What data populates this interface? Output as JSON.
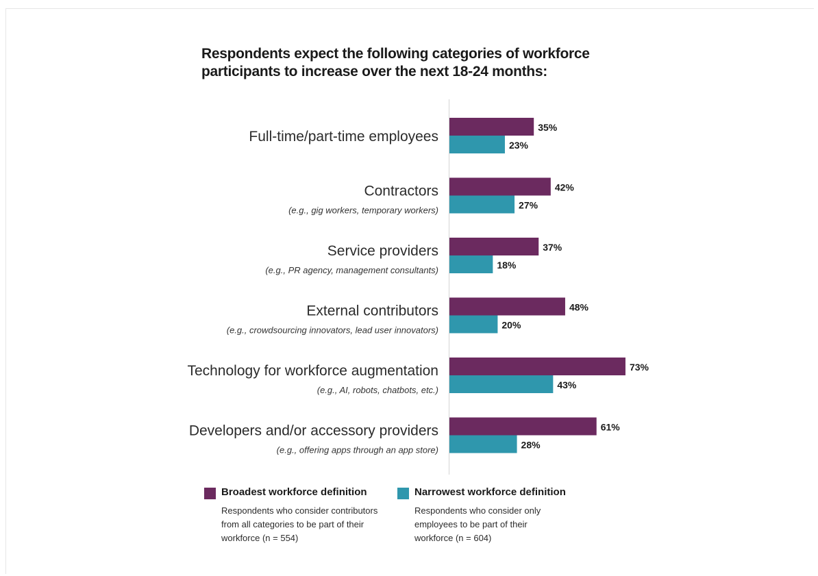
{
  "title_lines": [
    "Respondents expect the following categories of workforce",
    "participants to increase over the next 18-24 months:"
  ],
  "chart_data": {
    "type": "bar",
    "orientation": "horizontal",
    "categories": [
      {
        "label": "Full-time/part-time employees",
        "note": ""
      },
      {
        "label": "Contractors",
        "note": "(e.g., gig workers, temporary workers)"
      },
      {
        "label": "Service providers",
        "note": "(e.g., PR agency, management consultants)"
      },
      {
        "label": "External contributors",
        "note": "(e.g., crowdsourcing innovators, lead user innovators)"
      },
      {
        "label": "Technology for workforce augmentation",
        "note": "(e.g., AI, robots, chatbots, etc.)"
      },
      {
        "label": "Developers and/or accessory providers",
        "note": "(e.g., offering apps through an app store)"
      }
    ],
    "series": [
      {
        "name": "Broadest workforce definition",
        "color": "#6b2a5f",
        "values": [
          35,
          42,
          37,
          48,
          73,
          61
        ],
        "labels": [
          "35%",
          "42%",
          "37%",
          "48%",
          "73%",
          "61%"
        ]
      },
      {
        "name": "Narrowest workforce definition",
        "color": "#2f97ad",
        "values": [
          23,
          27,
          18,
          20,
          43,
          28
        ],
        "labels": [
          "23%",
          "27%",
          "18%",
          "20%",
          "43%",
          "28%"
        ]
      }
    ],
    "unit": "%",
    "xlim": [
      0,
      100
    ],
    "legend_position": "bottom-left"
  },
  "legend": [
    {
      "name": "Broadest workforce definition",
      "color": "#6b2a5f",
      "desc": "Respondents who consider contributors from all categories to be part of their workforce (n = 554)"
    },
    {
      "name": "Narrowest workforce definition",
      "color": "#2f97ad",
      "desc": "Respondents who consider only employees to be part of their workforce (n = 604)"
    }
  ]
}
